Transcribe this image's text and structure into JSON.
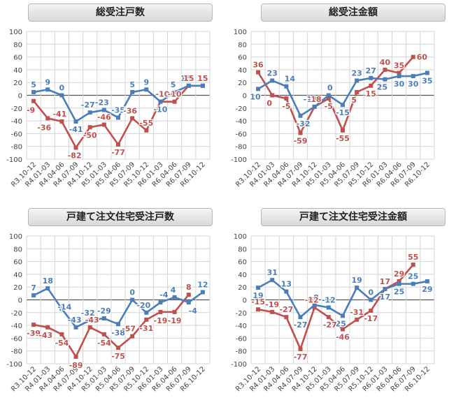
{
  "chart_data": [
    {
      "type": "line",
      "title": "総受注戸数",
      "categories": [
        "R3.10-12",
        "R4.01-03",
        "R4.04-06",
        "R4.07-09",
        "R4.10-12",
        "R5.01-03",
        "R5.04-06",
        "R5.07-09",
        "R5.10-12",
        "R6.01-03",
        "R6.04-06",
        "R6.07-09",
        "R6.10-12"
      ],
      "ylim": [
        -100,
        100
      ],
      "yticks": [
        -100,
        -80,
        -60,
        -40,
        -20,
        0,
        20,
        40,
        60,
        80,
        100
      ],
      "grid": true,
      "series": [
        {
          "color": "#4a7ebb",
          "values": [
            5,
            9,
            0,
            -41,
            -27,
            -23,
            -35,
            5,
            9,
            -10,
            5,
            15,
            15
          ]
        },
        {
          "color": "#c0504d",
          "values": [
            -9,
            -36,
            -41,
            -82,
            -50,
            -46,
            -77,
            -36,
            -55,
            -10,
            -10,
            15,
            15
          ]
        }
      ]
    },
    {
      "type": "line",
      "title": "総受注金額",
      "categories": [
        "R3.10-12",
        "R4.01-03",
        "R4.04-06",
        "R4.07-09",
        "R4.10-12",
        "R5.01-03",
        "R5.04-06",
        "R5.07-09",
        "R5.10-12",
        "R6.01-03",
        "R6.04-06",
        "R6.07-09",
        "R6.10-12"
      ],
      "ylim": [
        -100,
        100
      ],
      "yticks": [
        -100,
        -80,
        -60,
        -40,
        -20,
        0,
        20,
        40,
        60,
        80,
        100
      ],
      "grid": true,
      "series": [
        {
          "color": "#4a7ebb",
          "values": [
            10,
            23,
            14,
            -32,
            -18,
            0,
            -15,
            23,
            27,
            25,
            30,
            30,
            35
          ]
        },
        {
          "color": "#c0504d",
          "values": [
            36,
            0,
            -5,
            -59,
            -18,
            -5,
            -55,
            5,
            15,
            40,
            35,
            60,
            null
          ]
        }
      ]
    },
    {
      "type": "line",
      "title": "戸建て注文住宅受注戸数",
      "categories": [
        "R3.10-12",
        "R4.01-03",
        "R4.04-06",
        "R4.07-09",
        "R4.10-12",
        "R5.01-03",
        "R5.04-06",
        "R5.07-09",
        "R5.10-12",
        "R6.01-03",
        "R6.04-06",
        "R6.07-09",
        "R6.10-12"
      ],
      "ylim": [
        -100,
        100
      ],
      "yticks": [
        -100,
        -80,
        -60,
        -40,
        -20,
        0,
        20,
        40,
        60,
        80,
        100
      ],
      "grid": true,
      "series": [
        {
          "color": "#4a7ebb",
          "values": [
            7,
            18,
            -14,
            -43,
            -32,
            -29,
            -38,
            0,
            -20,
            -4,
            4,
            -4,
            12
          ]
        },
        {
          "color": "#c0504d",
          "values": [
            -39,
            -43,
            -54,
            -89,
            -43,
            -54,
            -75,
            -57,
            -31,
            -19,
            -19,
            8,
            null
          ]
        }
      ]
    },
    {
      "type": "line",
      "title": "戸建て注文住宅受注金額",
      "categories": [
        "R3.10-12",
        "R4.01-03",
        "R4.04-06",
        "R4.07-09",
        "R4.10-12",
        "R5.01-03",
        "R5.04-06",
        "R5.07-09",
        "R5.10-12",
        "R6.01-03",
        "R6.04-06",
        "R6.07-09",
        "R6.10-12"
      ],
      "ylim": [
        -100,
        100
      ],
      "yticks": [
        -100,
        -80,
        -60,
        -40,
        -20,
        0,
        20,
        40,
        60,
        80,
        100
      ],
      "grid": true,
      "series": [
        {
          "color": "#4a7ebb",
          "values": [
            19,
            31,
            13,
            -27,
            -8,
            -12,
            -25,
            19,
            0,
            17,
            25,
            25,
            29
          ]
        },
        {
          "color": "#c0504d",
          "values": [
            -15,
            -19,
            -27,
            -77,
            -12,
            -27,
            -46,
            -31,
            -17,
            17,
            29,
            55,
            null
          ]
        }
      ]
    }
  ]
}
